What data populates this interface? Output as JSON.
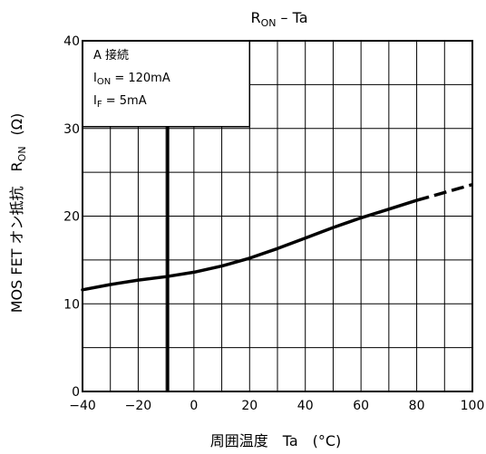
{
  "chart_data": {
    "type": "line",
    "title": {
      "main": "R",
      "sub": "ON",
      "rest": " – Ta"
    },
    "xlabel": "周囲温度　Ta　(°C)",
    "ylabel": {
      "prefix": "MOS FET オン抵抗　R",
      "sub": "ON",
      "unit": "(Ω)"
    },
    "xlim": [
      -40,
      100
    ],
    "ylim": [
      0,
      40
    ],
    "x_ticks": [
      -40,
      -20,
      0,
      20,
      40,
      60,
      80,
      100
    ],
    "x_tick_labels": [
      "−40",
      "−20",
      "0",
      "20",
      "40",
      "60",
      "80",
      "100"
    ],
    "y_ticks": [
      0,
      10,
      20,
      30,
      40
    ],
    "y_tick_labels": [
      "0",
      "10",
      "20",
      "30",
      "40"
    ],
    "grid": true,
    "conditions": [
      {
        "text": "A 接続"
      },
      {
        "prefix": "I",
        "sub": "ON",
        "rest": " = 120mA"
      },
      {
        "prefix": "I",
        "sub": "F",
        "rest": " = 5mA"
      }
    ],
    "series": [
      {
        "style": "solid",
        "x": [
          -40,
          -30,
          -20,
          -10,
          0,
          10,
          20,
          30,
          40,
          50,
          60,
          70,
          80
        ],
        "y": [
          11.6,
          12.2,
          12.7,
          13.1,
          13.6,
          14.3,
          15.2,
          16.3,
          17.5,
          18.7,
          19.8,
          20.8,
          21.8
        ]
      },
      {
        "style": "dashed",
        "x": [
          80,
          90,
          100
        ],
        "y": [
          21.8,
          22.7,
          23.6
        ]
      }
    ]
  }
}
